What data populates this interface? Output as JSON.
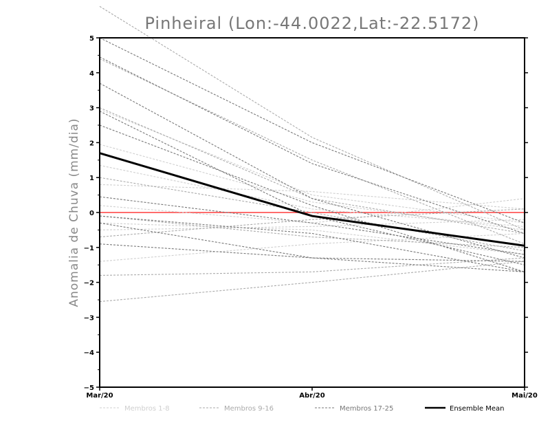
{
  "chart_data": {
    "type": "line",
    "title": "Pinheiral (Lon:-44.0022,Lat:-22.5172)",
    "xlabel": "",
    "ylabel": "Anomalia de Chuva (mm/dia)",
    "categories": [
      "Mar/20",
      "Abr/20",
      "Mai/20"
    ],
    "ylim": [
      -5,
      5
    ],
    "yticks": [
      "5",
      "4",
      "3",
      "2",
      "1",
      "0",
      "-1",
      "-2",
      "-3",
      "-4",
      "-5"
    ],
    "zero_line_color": "#ff3b3b",
    "legend": {
      "placement": "bottom",
      "entries": [
        {
          "name": "Membros 1-8",
          "color": "#cfcfcf"
        },
        {
          "name": "Membros 9-16",
          "color": "#aaaaaa"
        },
        {
          "name": "Membros 17-25",
          "color": "#777777"
        },
        {
          "name": "Ensemble Mean",
          "color": "#000000"
        }
      ]
    },
    "series": [
      {
        "name": "Membro 1",
        "group": 1,
        "values": [
          2.95,
          0.5,
          -0.3
        ]
      },
      {
        "name": "Membro 2",
        "group": 1,
        "values": [
          1.95,
          0.3,
          -0.5
        ]
      },
      {
        "name": "Membro 3",
        "group": 1,
        "values": [
          1.35,
          0.1,
          -0.4
        ]
      },
      {
        "name": "Membro 4",
        "group": 1,
        "values": [
          0.2,
          -0.3,
          0.4
        ]
      },
      {
        "name": "Membro 5",
        "group": 1,
        "values": [
          -0.5,
          -0.4,
          -0.2
        ]
      },
      {
        "name": "Membro 6",
        "group": 1,
        "values": [
          -1.4,
          -0.9,
          -0.6
        ]
      },
      {
        "name": "Membro 7",
        "group": 1,
        "values": [
          0.8,
          0.6,
          0.1
        ]
      },
      {
        "name": "Membro 8",
        "group": 1,
        "values": [
          -0.3,
          -0.5,
          -1.2
        ]
      },
      {
        "name": "Membro 9",
        "group": 2,
        "values": [
          5.9,
          2.15,
          -0.5
        ]
      },
      {
        "name": "Membro 10",
        "group": 2,
        "values": [
          4.4,
          1.5,
          -0.9
        ]
      },
      {
        "name": "Membro 11",
        "group": 2,
        "values": [
          3.0,
          0.4,
          -0.6
        ]
      },
      {
        "name": "Membro 12",
        "group": 2,
        "values": [
          1.0,
          0.0,
          -1.1
        ]
      },
      {
        "name": "Membro 13",
        "group": 2,
        "values": [
          -1.8,
          -1.7,
          -1.3
        ]
      },
      {
        "name": "Membro 14",
        "group": 2,
        "values": [
          -2.55,
          -2.0,
          -1.4
        ]
      },
      {
        "name": "Membro 15",
        "group": 2,
        "values": [
          -0.1,
          -0.7,
          -1.0
        ]
      },
      {
        "name": "Membro 16",
        "group": 2,
        "values": [
          -0.7,
          -0.2,
          0.1
        ]
      },
      {
        "name": "Membro 17",
        "group": 3,
        "values": [
          5.0,
          2.0,
          -0.3
        ]
      },
      {
        "name": "Membro 18",
        "group": 3,
        "values": [
          4.45,
          1.4,
          -0.6
        ]
      },
      {
        "name": "Membro 19",
        "group": 3,
        "values": [
          3.7,
          0.4,
          -1.3
        ]
      },
      {
        "name": "Membro 20",
        "group": 3,
        "values": [
          2.5,
          0.2,
          -1.7
        ]
      },
      {
        "name": "Membro 21",
        "group": 3,
        "values": [
          2.9,
          -0.1,
          -1.5
        ]
      },
      {
        "name": "Membro 22",
        "group": 3,
        "values": [
          0.45,
          -0.3,
          -1.2
        ]
      },
      {
        "name": "Membro 23",
        "group": 3,
        "values": [
          -0.3,
          -1.3,
          -1.7
        ]
      },
      {
        "name": "Membro 24",
        "group": 3,
        "values": [
          -0.9,
          -1.3,
          -1.4
        ]
      },
      {
        "name": "Membro 25",
        "group": 3,
        "values": [
          -0.1,
          -0.6,
          -1.7
        ]
      },
      {
        "name": "Ensemble Mean",
        "group": 0,
        "values": [
          1.7,
          -0.1,
          -0.95
        ]
      }
    ]
  }
}
